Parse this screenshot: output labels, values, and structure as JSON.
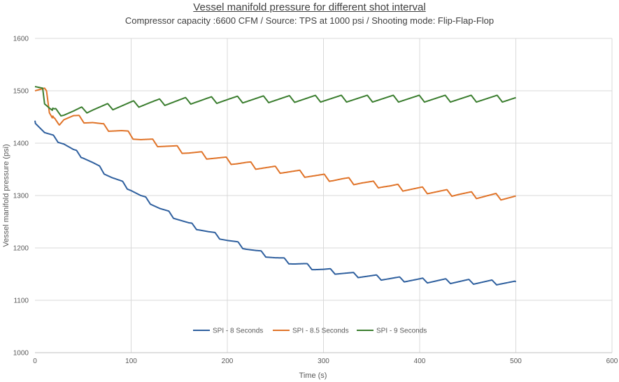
{
  "chart_data": {
    "type": "line",
    "title": "Vessel manifold pressure for different shot interval",
    "subtitle": "Compressor capacity :6600 CFM / Source: TPS at 1000 psi / Shooting mode: Flip-Flap-Flop",
    "xlabel": "Time (s)",
    "ylabel": "Vessel manifold pressure (psi)",
    "xlim": [
      0,
      600
    ],
    "ylim": [
      1000,
      1600
    ],
    "xticks": [
      0,
      100,
      200,
      300,
      400,
      500,
      600
    ],
    "xtick_labels": [
      "0",
      "100",
      "200",
      "300",
      "400",
      "500",
      "600"
    ],
    "yticks": [
      1000,
      1100,
      1200,
      1300,
      1400,
      1500,
      1600
    ],
    "ytick_labels": [
      "1000",
      "1100",
      "1200",
      "1300",
      "1400",
      "1500",
      "1600"
    ],
    "grid": true,
    "legend_position": "bottom-center",
    "series": [
      {
        "name": "SPI - 8 Seconds",
        "color": "#2e5f9e",
        "interval": 8,
        "points": [
          [
            0,
            1443
          ],
          [
            10,
            1420
          ],
          [
            20,
            1410
          ],
          [
            30,
            1400
          ],
          [
            40,
            1385
          ],
          [
            50,
            1375
          ],
          [
            60,
            1362
          ],
          [
            70,
            1348
          ],
          [
            80,
            1335
          ],
          [
            90,
            1324
          ],
          [
            100,
            1312
          ],
          [
            110,
            1298
          ],
          [
            120,
            1288
          ],
          [
            130,
            1275
          ],
          [
            140,
            1265
          ],
          [
            150,
            1255
          ],
          [
            160,
            1245
          ],
          [
            170,
            1238
          ],
          [
            180,
            1230
          ],
          [
            190,
            1223
          ],
          [
            200,
            1215
          ],
          [
            210,
            1208
          ],
          [
            220,
            1200
          ],
          [
            230,
            1193
          ],
          [
            240,
            1187
          ],
          [
            250,
            1181
          ],
          [
            260,
            1176
          ],
          [
            270,
            1171
          ],
          [
            280,
            1167
          ],
          [
            290,
            1162
          ],
          [
            300,
            1158
          ],
          [
            310,
            1155
          ],
          [
            320,
            1152
          ],
          [
            330,
            1149
          ],
          [
            340,
            1147
          ],
          [
            350,
            1145
          ],
          [
            360,
            1143
          ],
          [
            380,
            1140
          ],
          [
            400,
            1138
          ],
          [
            420,
            1137
          ],
          [
            440,
            1136
          ],
          [
            460,
            1135
          ],
          [
            480,
            1134
          ],
          [
            500,
            1132
          ]
        ]
      },
      {
        "name": "SPI - 8.5 Seconds",
        "color": "#e07328",
        "interval": 8.5,
        "points": [
          [
            0,
            1500
          ],
          [
            10,
            1505
          ],
          [
            12,
            1500
          ],
          [
            15,
            1458
          ],
          [
            20,
            1442
          ],
          [
            25,
            1440
          ],
          [
            30,
            1448
          ],
          [
            40,
            1450
          ],
          [
            50,
            1445
          ],
          [
            60,
            1440
          ],
          [
            70,
            1432
          ],
          [
            80,
            1427
          ],
          [
            90,
            1422
          ],
          [
            100,
            1415
          ],
          [
            110,
            1408
          ],
          [
            120,
            1403
          ],
          [
            130,
            1398
          ],
          [
            140,
            1393
          ],
          [
            150,
            1388
          ],
          [
            160,
            1383
          ],
          [
            170,
            1379
          ],
          [
            180,
            1375
          ],
          [
            190,
            1371
          ],
          [
            200,
            1367
          ],
          [
            210,
            1363
          ],
          [
            220,
            1360
          ],
          [
            230,
            1356
          ],
          [
            240,
            1353
          ],
          [
            250,
            1350
          ],
          [
            260,
            1347
          ],
          [
            270,
            1344
          ],
          [
            280,
            1341
          ],
          [
            290,
            1338
          ],
          [
            300,
            1335
          ],
          [
            310,
            1332
          ],
          [
            320,
            1330
          ],
          [
            330,
            1327
          ],
          [
            340,
            1325
          ],
          [
            350,
            1322
          ],
          [
            360,
            1320
          ],
          [
            370,
            1317
          ],
          [
            380,
            1315
          ],
          [
            390,
            1313
          ],
          [
            400,
            1311
          ],
          [
            410,
            1309
          ],
          [
            420,
            1307
          ],
          [
            430,
            1305
          ],
          [
            440,
            1304
          ],
          [
            450,
            1302
          ],
          [
            460,
            1300
          ],
          [
            470,
            1299
          ],
          [
            480,
            1298
          ],
          [
            490,
            1297
          ],
          [
            500,
            1296
          ]
        ]
      },
      {
        "name": "SPI - 9 Seconds",
        "color": "#3a7d2e",
        "interval": 9,
        "points": [
          [
            0,
            1508
          ],
          [
            8,
            1505
          ],
          [
            10,
            1475
          ],
          [
            15,
            1467
          ],
          [
            20,
            1460
          ],
          [
            30,
            1458
          ],
          [
            40,
            1460
          ],
          [
            50,
            1463
          ],
          [
            60,
            1466
          ],
          [
            70,
            1468
          ],
          [
            80,
            1470
          ],
          [
            90,
            1472
          ],
          [
            100,
            1474
          ],
          [
            120,
            1477
          ],
          [
            140,
            1479
          ],
          [
            160,
            1481
          ],
          [
            180,
            1482
          ],
          [
            200,
            1483
          ],
          [
            250,
            1484
          ],
          [
            300,
            1485
          ],
          [
            350,
            1485
          ],
          [
            400,
            1485
          ],
          [
            450,
            1485
          ],
          [
            500,
            1485
          ]
        ]
      }
    ]
  }
}
